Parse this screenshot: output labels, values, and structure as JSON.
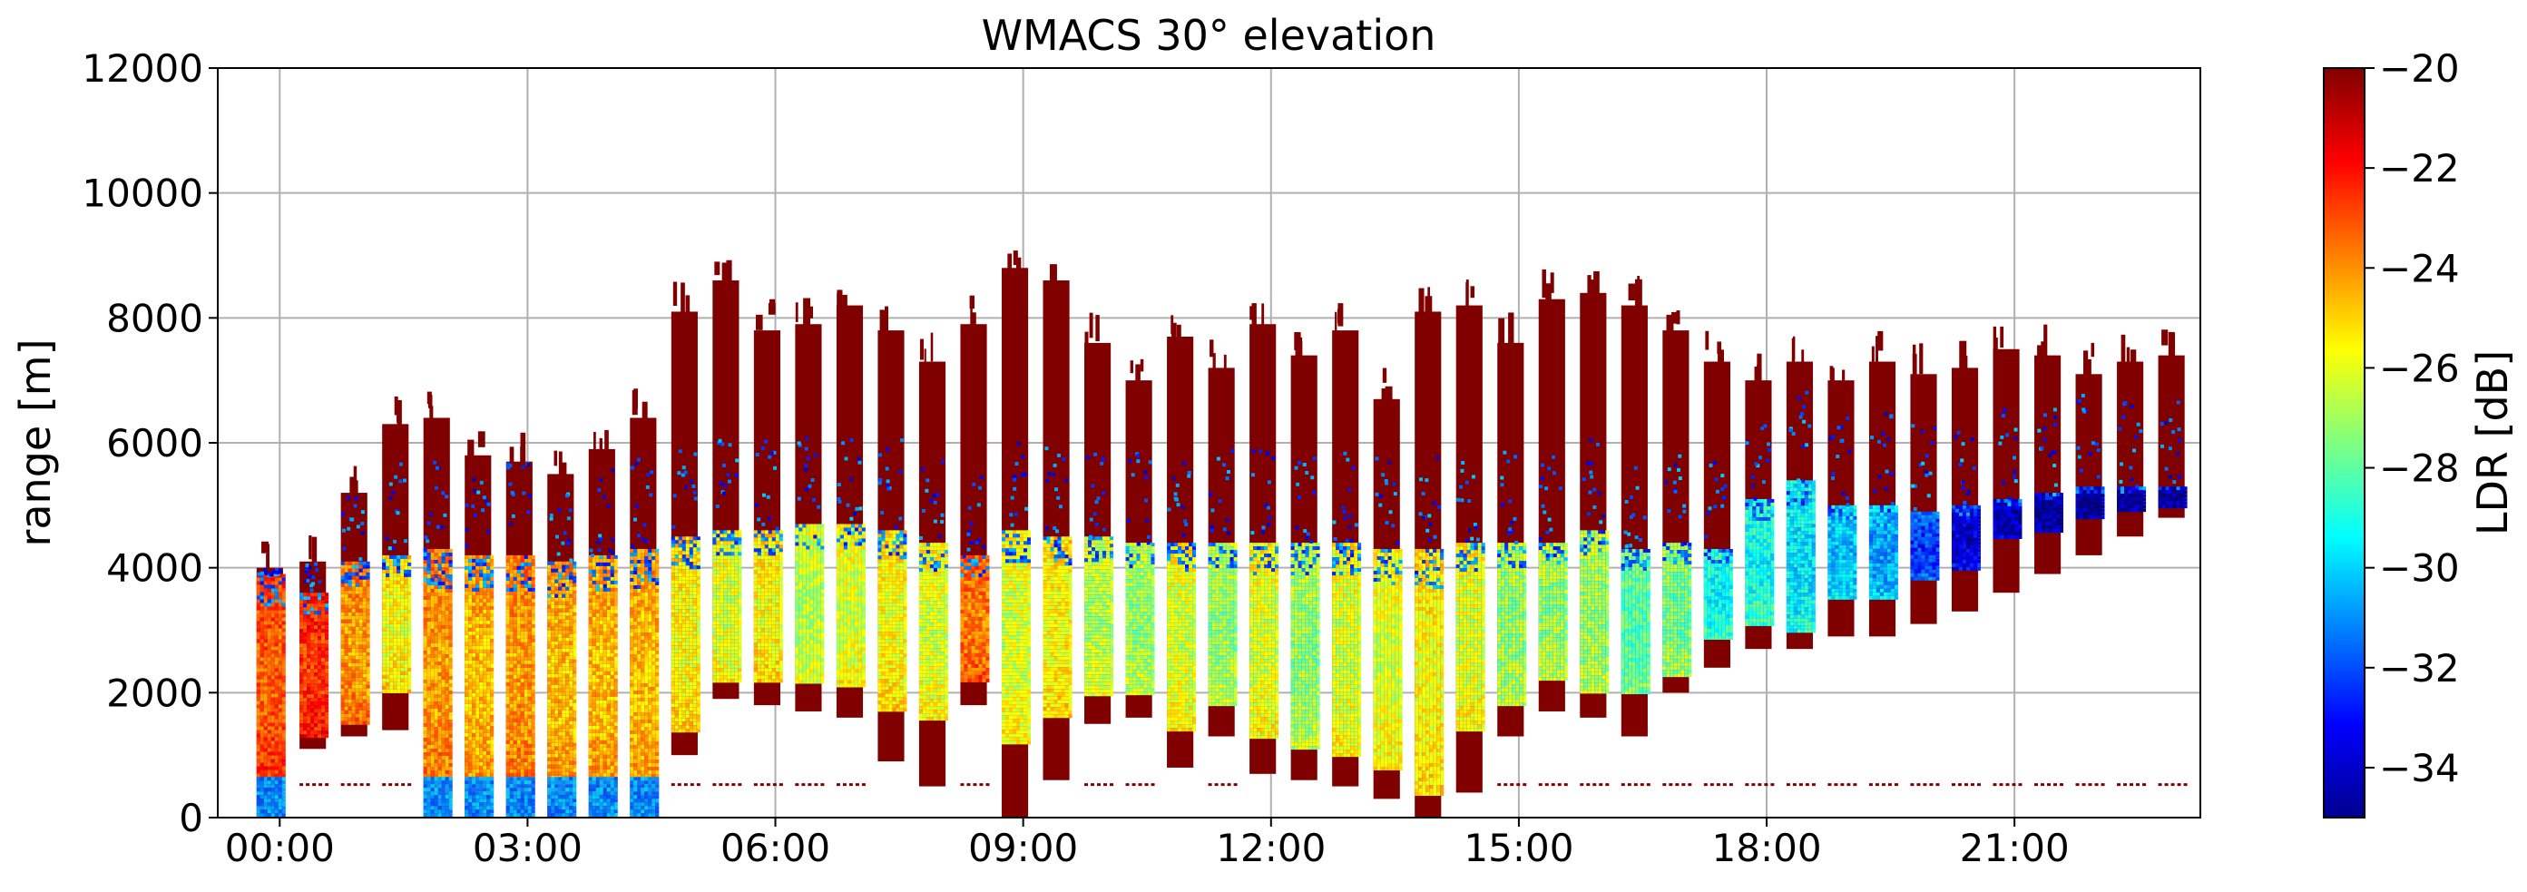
{
  "chart_data": {
    "type": "heatmap",
    "title": "WMACS 30° elevation",
    "xlabel": "",
    "ylabel": "range [m]",
    "xlim": [
      -0.75,
      23.25
    ],
    "ylim": [
      0,
      12000
    ],
    "x_unit": "hours",
    "x_ticks": [
      0,
      3,
      6,
      9,
      12,
      15,
      18,
      21
    ],
    "x_tick_labels": [
      "00:00",
      "03:00",
      "06:00",
      "09:00",
      "12:00",
      "15:00",
      "18:00",
      "21:00"
    ],
    "y_ticks": [
      0,
      2000,
      4000,
      6000,
      8000,
      10000,
      12000
    ],
    "y_tick_labels": [
      "0",
      "2000",
      "4000",
      "6000",
      "8000",
      "10000",
      "12000"
    ],
    "grid": true,
    "colormap": "jet",
    "colorbar": {
      "label": "LDR [dB]",
      "min": -35,
      "max": -20,
      "ticks": [
        -34,
        -32,
        -30,
        -28,
        -26,
        -24,
        -22,
        -20
      ],
      "tick_labels": [
        "−34",
        "−32",
        "−30",
        "−28",
        "−26",
        "−24",
        "−22",
        "−20"
      ]
    },
    "scans": [
      {
        "t": -0.12,
        "base": 0,
        "top": 4000,
        "core_lo": 700,
        "core_hi": 3900,
        "ldr": -22.5,
        "low_ldr": -31
      },
      {
        "t": 0.4,
        "base": 1100,
        "top": 4100,
        "core_lo": 1300,
        "core_hi": 3600,
        "ldr": -22
      },
      {
        "t": 0.9,
        "base": 1300,
        "top": 5200,
        "core_lo": 1500,
        "core_hi": 4100,
        "ldr": -23.5
      },
      {
        "t": 1.4,
        "base": 1400,
        "top": 6300,
        "core_lo": 2000,
        "core_hi": 4200,
        "ldr": -25
      },
      {
        "t": 1.9,
        "base": 0,
        "top": 6400,
        "core_lo": 400,
        "core_hi": 4300,
        "ldr": -23.5,
        "low_ldr": -31
      },
      {
        "t": 2.4,
        "base": 0,
        "top": 5800,
        "core_lo": 400,
        "core_hi": 4200,
        "ldr": -24,
        "low_ldr": -31
      },
      {
        "t": 2.9,
        "base": 0,
        "top": 5700,
        "core_lo": 400,
        "core_hi": 4200,
        "ldr": -23.5,
        "low_ldr": -31
      },
      {
        "t": 3.4,
        "base": 0,
        "top": 5500,
        "core_lo": 400,
        "core_hi": 4100,
        "ldr": -24,
        "low_ldr": -31
      },
      {
        "t": 3.9,
        "base": 0,
        "top": 5900,
        "core_lo": 400,
        "core_hi": 4200,
        "ldr": -24,
        "low_ldr": -31
      },
      {
        "t": 4.4,
        "base": 0,
        "top": 6400,
        "core_lo": 400,
        "core_hi": 4300,
        "ldr": -24,
        "low_ldr": -31
      },
      {
        "t": 4.9,
        "base": 1000,
        "top": 8100,
        "core_lo": 1400,
        "core_hi": 4500,
        "ldr": -25
      },
      {
        "t": 5.4,
        "base": 1900,
        "top": 8600,
        "core_lo": 2200,
        "core_hi": 4600,
        "ldr": -25.5
      },
      {
        "t": 5.9,
        "base": 1800,
        "top": 7800,
        "core_lo": 2200,
        "core_hi": 4600,
        "ldr": -25
      },
      {
        "t": 6.4,
        "base": 1700,
        "top": 7900,
        "core_lo": 2200,
        "core_hi": 4700,
        "ldr": -26
      },
      {
        "t": 6.9,
        "base": 1600,
        "top": 8200,
        "core_lo": 2100,
        "core_hi": 4700,
        "ldr": -25.5
      },
      {
        "t": 7.4,
        "base": 900,
        "top": 7800,
        "core_lo": 1700,
        "core_hi": 4600,
        "ldr": -25
      },
      {
        "t": 7.9,
        "base": 500,
        "top": 7300,
        "core_lo": 1600,
        "core_hi": 4400,
        "ldr": -25.5
      },
      {
        "t": 8.4,
        "base": 1800,
        "top": 7900,
        "core_lo": 2200,
        "core_hi": 4200,
        "ldr": -23
      },
      {
        "t": 8.9,
        "base": 0,
        "top": 8800,
        "core_lo": 1200,
        "core_hi": 4600,
        "ldr": -25.5
      },
      {
        "t": 9.4,
        "base": 600,
        "top": 8600,
        "core_lo": 1600,
        "core_hi": 4500,
        "ldr": -25
      },
      {
        "t": 9.9,
        "base": 1500,
        "top": 7600,
        "core_lo": 2000,
        "core_hi": 4500,
        "ldr": -26
      },
      {
        "t": 10.4,
        "base": 1600,
        "top": 7000,
        "core_lo": 2000,
        "core_hi": 4400,
        "ldr": -26.5
      },
      {
        "t": 10.9,
        "base": 800,
        "top": 7700,
        "core_lo": 1400,
        "core_hi": 4400,
        "ldr": -25.5
      },
      {
        "t": 11.4,
        "base": 1300,
        "top": 7200,
        "core_lo": 1800,
        "core_hi": 4400,
        "ldr": -26.5
      },
      {
        "t": 11.9,
        "base": 700,
        "top": 7900,
        "core_lo": 1300,
        "core_hi": 4400,
        "ldr": -25.5
      },
      {
        "t": 12.4,
        "base": 600,
        "top": 7400,
        "core_lo": 1100,
        "core_hi": 4400,
        "ldr": -26.5
      },
      {
        "t": 12.9,
        "base": 500,
        "top": 7800,
        "core_lo": 1000,
        "core_hi": 4400,
        "ldr": -25.5
      },
      {
        "t": 13.4,
        "base": 300,
        "top": 6700,
        "core_lo": 800,
        "core_hi": 4300,
        "ldr": -25.5
      },
      {
        "t": 13.9,
        "base": 0,
        "top": 8100,
        "core_lo": 400,
        "core_hi": 4300,
        "ldr": -25
      },
      {
        "t": 14.4,
        "base": 400,
        "top": 8200,
        "core_lo": 1400,
        "core_hi": 4400,
        "ldr": -25.5
      },
      {
        "t": 14.9,
        "base": 1300,
        "top": 7600,
        "core_lo": 1800,
        "core_hi": 4400,
        "ldr": -26.5
      },
      {
        "t": 15.4,
        "base": 1700,
        "top": 8300,
        "core_lo": 2200,
        "core_hi": 4400,
        "ldr": -26.5
      },
      {
        "t": 15.9,
        "base": 1600,
        "top": 8400,
        "core_lo": 2000,
        "core_hi": 4600,
        "ldr": -26.5
      },
      {
        "t": 16.4,
        "base": 1300,
        "top": 8200,
        "core_lo": 2000,
        "core_hi": 4300,
        "ldr": -27.5
      },
      {
        "t": 16.9,
        "base": 2000,
        "top": 7800,
        "core_lo": 2300,
        "core_hi": 4400,
        "ldr": -27
      },
      {
        "t": 17.4,
        "base": 2400,
        "top": 7300,
        "core_lo": 2900,
        "core_hi": 4300,
        "ldr": -28.5
      },
      {
        "t": 17.9,
        "base": 2700,
        "top": 7000,
        "core_lo": 3100,
        "core_hi": 5100,
        "ldr": -28.5
      },
      {
        "t": 18.4,
        "base": 2700,
        "top": 7300,
        "core_lo": 3000,
        "core_hi": 5400,
        "ldr": -29
      },
      {
        "t": 18.9,
        "base": 2900,
        "top": 7000,
        "core_lo": 3500,
        "core_hi": 5000,
        "ldr": -29.5
      },
      {
        "t": 19.4,
        "base": 2900,
        "top": 7300,
        "core_lo": 3500,
        "core_hi": 5000,
        "ldr": -30
      },
      {
        "t": 19.9,
        "base": 3100,
        "top": 7100,
        "core_lo": 3800,
        "core_hi": 4900,
        "ldr": -31.5
      },
      {
        "t": 20.4,
        "base": 3300,
        "top": 7200,
        "core_lo": 4000,
        "core_hi": 5000,
        "ldr": -33
      },
      {
        "t": 20.9,
        "base": 3600,
        "top": 7500,
        "core_lo": 4500,
        "core_hi": 5100,
        "ldr": -33.5
      },
      {
        "t": 21.4,
        "base": 3900,
        "top": 7400,
        "core_lo": 4600,
        "core_hi": 5200,
        "ldr": -34
      },
      {
        "t": 21.9,
        "base": 4200,
        "top": 7100,
        "core_lo": 4800,
        "core_hi": 5300,
        "ldr": -34
      },
      {
        "t": 22.4,
        "base": 4500,
        "top": 7300,
        "core_lo": 4900,
        "core_hi": 5300,
        "ldr": -34
      },
      {
        "t": 22.9,
        "base": 4800,
        "top": 7400,
        "core_lo": 5000,
        "core_hi": 5300,
        "ldr": -34
      }
    ],
    "clutter_band_m": 550
  }
}
